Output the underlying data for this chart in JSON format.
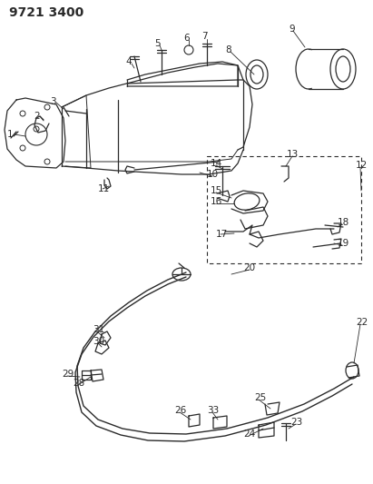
{
  "title": "9721 3400",
  "bg_color": "#ffffff",
  "line_color": "#2a2a2a",
  "title_fontsize": 10,
  "label_fontsize": 7.5,
  "fig_width": 4.11,
  "fig_height": 5.33,
  "dpi": 100
}
